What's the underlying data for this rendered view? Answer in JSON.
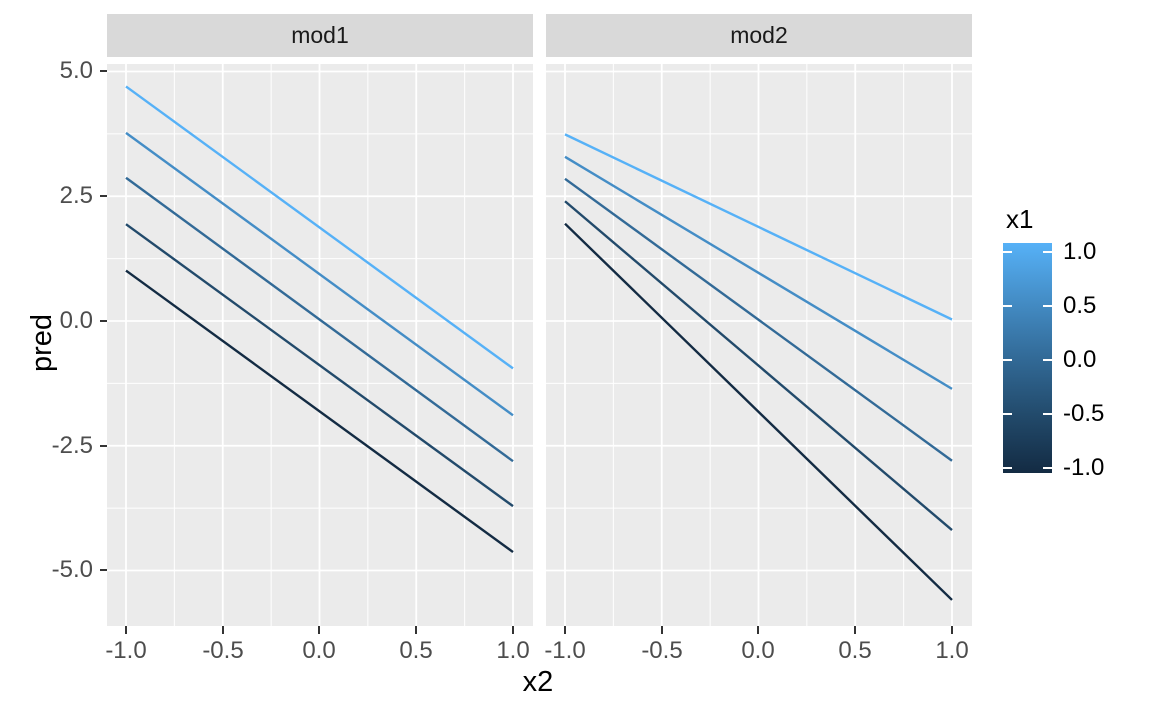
{
  "figure": {
    "y_axis": {
      "title": "pred",
      "tick_labels": [
        "5.0",
        "2.5",
        "0.0",
        "-2.5",
        "-5.0"
      ],
      "tick_values": [
        5,
        2.5,
        0,
        -2.5,
        -5
      ],
      "minor_values": [
        3.75,
        1.25,
        -1.25,
        -3.75
      ]
    },
    "x_axis": {
      "title": "x2",
      "tick_labels": [
        "-1.0",
        "-0.5",
        "0.0",
        "0.5",
        "1.0"
      ],
      "tick_values": [
        -1,
        -0.5,
        0,
        0.5,
        1
      ],
      "minor_values": [
        -0.75,
        -0.25,
        0.25,
        0.75
      ]
    },
    "legend": {
      "title": "x1",
      "tick_labels": [
        "1.0",
        "0.5",
        "0.0",
        "-0.5",
        "-1.0"
      ],
      "gradient_stops_top_to_bottom": [
        "#56B1F7",
        "#448DC6",
        "#326A97",
        "#224A6B",
        "#132B43"
      ],
      "high_color": "#56B1F7",
      "low_color": "#132B43"
    }
  },
  "chart_data": {
    "type": "line",
    "title": "",
    "xlabel": "x2",
    "ylabel": "pred",
    "xlim": [
      -1.2,
      1.2
    ],
    "ylim": [
      -6.1,
      5.15
    ],
    "grid": "on",
    "legend_position": "right",
    "legend_type": "colorbar",
    "color_scale": {
      "variable": "x1",
      "low": "#132B43",
      "high": "#56B1F7",
      "domain": [
        -1,
        1
      ]
    },
    "facets": [
      {
        "name": "mod1",
        "series": [
          {
            "x1": 1.0,
            "color": "#56B1F7",
            "x": [
              -1,
              1
            ],
            "y": [
              4.7,
              -0.95
            ]
          },
          {
            "x1": 0.5,
            "color": "#448DC6",
            "x": [
              -1,
              1
            ],
            "y": [
              3.77,
              -1.89
            ]
          },
          {
            "x1": 0.0,
            "color": "#326A97",
            "x": [
              -1,
              1
            ],
            "y": [
              2.87,
              -2.81
            ]
          },
          {
            "x1": -0.5,
            "color": "#224A6B",
            "x": [
              -1,
              1
            ],
            "y": [
              1.94,
              -3.71
            ]
          },
          {
            "x1": -1.0,
            "color": "#132B43",
            "x": [
              -1,
              1
            ],
            "y": [
              1.01,
              -4.63
            ]
          }
        ]
      },
      {
        "name": "mod2",
        "series": [
          {
            "x1": 1.0,
            "color": "#56B1F7",
            "x": [
              -1,
              1
            ],
            "y": [
              3.74,
              0.03
            ]
          },
          {
            "x1": 0.5,
            "color": "#448DC6",
            "x": [
              -1,
              1
            ],
            "y": [
              3.29,
              -1.36
            ]
          },
          {
            "x1": 0.0,
            "color": "#326A97",
            "x": [
              -1,
              1
            ],
            "y": [
              2.85,
              -2.8
            ]
          },
          {
            "x1": -0.5,
            "color": "#224A6B",
            "x": [
              -1,
              1
            ],
            "y": [
              2.4,
              -4.19
            ]
          },
          {
            "x1": -1.0,
            "color": "#132B43",
            "x": [
              -1,
              1
            ],
            "y": [
              1.95,
              -5.59
            ]
          }
        ]
      }
    ]
  },
  "colors": {
    "panel_bg": "#EBEBEB",
    "strip_bg": "#D9D9D9",
    "grid": "#FFFFFF",
    "tick_mark": "#333333",
    "axis_text": "#4D4D4D",
    "strip_text": "#1A1A1A",
    "title_text": "#000000"
  }
}
